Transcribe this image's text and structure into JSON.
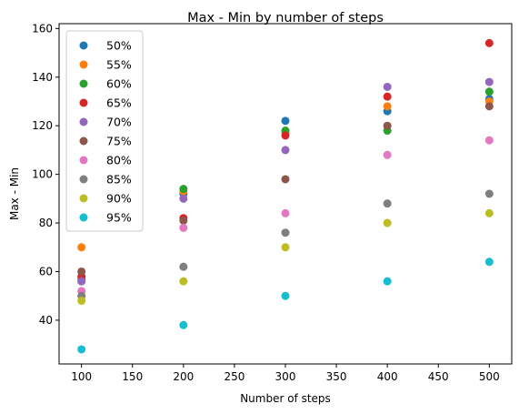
{
  "chart_data": {
    "type": "scatter",
    "title": "Max - Min by number of steps",
    "xlabel": "Number of steps",
    "ylabel": "Max - Min",
    "xlim": [
      78,
      522
    ],
    "ylim": [
      22,
      162
    ],
    "xticks": [
      100,
      150,
      200,
      250,
      300,
      350,
      400,
      450,
      500
    ],
    "yticks": [
      40,
      60,
      80,
      100,
      120,
      140,
      160
    ],
    "grid": false,
    "legend_position": "top-left",
    "x": [
      100,
      200,
      300,
      400,
      500
    ],
    "series": [
      {
        "name": "50%",
        "color": "#1f77b4",
        "values": [
          57,
          92,
          122,
          126,
          131
        ]
      },
      {
        "name": "55%",
        "color": "#ff7f0e",
        "values": [
          70,
          93,
          117,
          128,
          130
        ]
      },
      {
        "name": "60%",
        "color": "#2ca02c",
        "values": [
          56,
          94,
          118,
          118,
          134
        ]
      },
      {
        "name": "65%",
        "color": "#d62728",
        "values": [
          58,
          82,
          116,
          132,
          154
        ]
      },
      {
        "name": "70%",
        "color": "#9467bd",
        "values": [
          56,
          90,
          110,
          136,
          138
        ]
      },
      {
        "name": "75%",
        "color": "#8c564b",
        "values": [
          60,
          81,
          98,
          120,
          128
        ]
      },
      {
        "name": "80%",
        "color": "#e377c2",
        "values": [
          52,
          78,
          84,
          108,
          114
        ]
      },
      {
        "name": "85%",
        "color": "#7f7f7f",
        "values": [
          50,
          62,
          76,
          88,
          92
        ]
      },
      {
        "name": "90%",
        "color": "#bcbd22",
        "values": [
          48,
          56,
          70,
          80,
          84
        ]
      },
      {
        "name": "95%",
        "color": "#17becf",
        "values": [
          28,
          38,
          50,
          56,
          64
        ]
      }
    ]
  }
}
